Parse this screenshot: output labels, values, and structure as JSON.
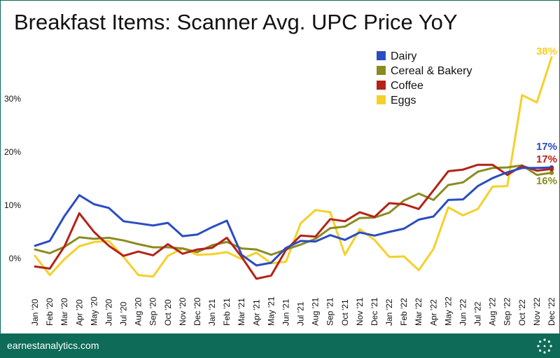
{
  "title": "Breakfast Items: Scanner Avg. UPC Price YoY",
  "footer": {
    "brand": "earnestanalytics.com"
  },
  "chart_data": {
    "type": "line",
    "title": "Breakfast Items: Scanner Avg. UPC Price YoY",
    "xlabel": "",
    "ylabel": "",
    "ylim": [
      -4,
      40
    ],
    "yticks": [
      0,
      10,
      20,
      30
    ],
    "ytick_labels": [
      "0%",
      "10%",
      "20%",
      "30%"
    ],
    "grid": false,
    "legend_position": "top-right",
    "categories": [
      "Jan '20",
      "Feb '20",
      "Mar '20",
      "Apr '20",
      "May '20",
      "Jun '20",
      "Jul '20",
      "Aug '20",
      "Sep '20",
      "Oct '20",
      "Nov '20",
      "Dec '20",
      "Jan '21",
      "Feb '21",
      "Mar '21",
      "Apr '21",
      "May '21",
      "Jun '21",
      "Jul '21",
      "Aug '21",
      "Sep '21",
      "Oct '21",
      "Nov '21",
      "Dec '21",
      "Jan '22",
      "Feb '22",
      "Mar '22",
      "Apr '22",
      "May '22",
      "Jun '22",
      "Jul '22",
      "Aug '22",
      "Sep '22",
      "Oct '22",
      "Nov '22",
      "Dec '22"
    ],
    "series": [
      {
        "name": "Dairy",
        "color": "#2a4dbf",
        "end_label": "17%",
        "values": [
          2.4,
          3.3,
          8.0,
          11.9,
          10.2,
          9.5,
          7.0,
          6.6,
          6.2,
          6.7,
          4.2,
          4.5,
          5.9,
          7.1,
          0.7,
          -1.3,
          -0.8,
          2.0,
          3.3,
          3.2,
          4.4,
          3.5,
          4.9,
          4.3,
          5.0,
          5.6,
          7.3,
          7.9,
          11.0,
          11.1,
          13.6,
          15.1,
          16.2,
          17.0,
          17.0,
          17.1
        ]
      },
      {
        "name": "Cereal & Bakery",
        "color": "#8a8c22",
        "end_label": "16%",
        "values": [
          1.7,
          1.0,
          2.2,
          4.0,
          3.7,
          3.9,
          3.4,
          2.7,
          2.1,
          2.1,
          1.9,
          1.2,
          2.5,
          3.1,
          1.9,
          1.7,
          0.7,
          1.7,
          2.6,
          3.7,
          5.7,
          6.0,
          7.6,
          7.7,
          8.6,
          10.9,
          12.2,
          11.0,
          13.8,
          14.3,
          16.3,
          17.0,
          17.1,
          17.5,
          15.7,
          16.1
        ]
      },
      {
        "name": "Coffee",
        "color": "#b42318",
        "end_label": "17%",
        "values": [
          -1.5,
          -1.9,
          2.3,
          8.5,
          5.0,
          2.4,
          0.5,
          1.3,
          0.6,
          2.7,
          0.9,
          1.7,
          2.0,
          3.9,
          0.3,
          -3.8,
          -3.2,
          1.6,
          4.3,
          4.1,
          7.4,
          7.0,
          8.7,
          7.8,
          10.4,
          10.2,
          9.3,
          12.8,
          16.4,
          16.7,
          17.6,
          17.6,
          15.7,
          17.4,
          16.5,
          16.8
        ]
      },
      {
        "name": "Eggs",
        "color": "#f5d02a",
        "end_label": "38%",
        "values": [
          0.5,
          -3.1,
          -0.1,
          2.3,
          3.1,
          3.3,
          0.3,
          -3.1,
          -3.4,
          0.5,
          1.9,
          0.7,
          0.8,
          1.2,
          -0.1,
          1.1,
          -0.9,
          -0.6,
          6.6,
          9.1,
          8.7,
          0.7,
          5.5,
          3.5,
          0.3,
          0.4,
          -2.2,
          1.8,
          9.6,
          8.1,
          9.3,
          13.5,
          13.6,
          30.7,
          29.3,
          37.8
        ]
      }
    ]
  }
}
